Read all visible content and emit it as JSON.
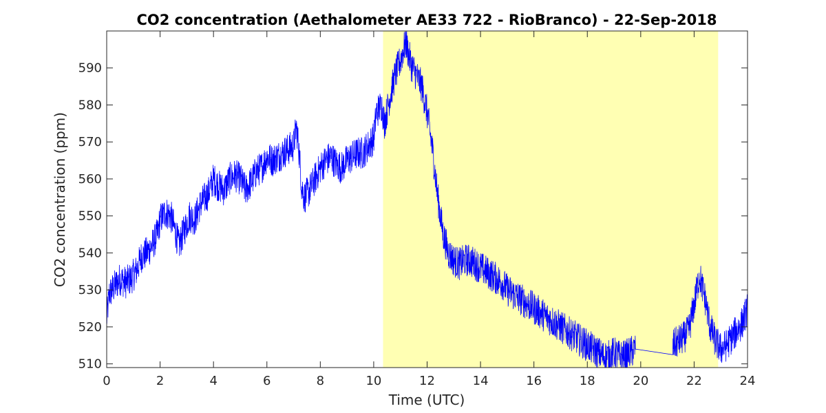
{
  "chart_data": {
    "type": "line",
    "title": "CO2 concentration (Aethalometer AE33 722 - RioBranco) - 22-Sep-2018",
    "xlabel": "Time (UTC)",
    "ylabel": "CO2 concentration (ppm)",
    "xlim": [
      0,
      24
    ],
    "ylim": [
      509,
      600
    ],
    "x_ticks": [
      0,
      2,
      4,
      6,
      8,
      10,
      12,
      14,
      16,
      18,
      20,
      22,
      24
    ],
    "y_ticks": [
      510,
      520,
      530,
      540,
      550,
      560,
      570,
      580,
      590
    ],
    "grid": false,
    "shaded_region": {
      "x_start": 10.35,
      "x_end": 22.9,
      "color": "#ffffb3"
    },
    "line_color": "#0000ff",
    "series": [
      {
        "x": [
          0,
          0.1,
          0.3,
          0.5,
          0.7,
          0.9,
          1.1,
          1.3,
          1.5,
          1.7,
          1.9,
          2.0,
          2.2,
          2.4,
          2.6,
          2.7,
          2.9,
          3.1,
          3.3,
          3.5,
          3.8,
          4.0,
          4.2,
          4.4,
          4.6,
          4.8,
          5.0,
          5.2,
          5.4,
          5.6,
          5.8,
          6.0,
          6.2,
          6.4,
          6.6,
          6.8,
          7.0,
          7.1,
          7.2,
          7.3,
          7.4,
          7.6,
          7.8,
          8.0,
          8.2,
          8.4,
          8.6,
          8.8,
          9.0,
          9.2,
          9.4,
          9.6,
          9.8,
          10.0,
          10.1,
          10.3,
          10.4,
          10.6,
          10.8,
          11.0,
          11.2,
          11.4,
          11.6,
          11.8,
          12.0,
          12.2,
          12.4,
          12.6,
          12.8,
          13.0,
          13.2,
          13.4,
          13.6,
          13.8,
          14.0,
          14.2,
          14.4,
          14.6,
          14.8,
          15.0,
          15.2,
          15.4,
          15.6,
          15.8,
          16.0,
          16.2,
          16.4,
          16.6,
          16.8,
          17.0,
          17.2,
          17.4,
          17.6,
          17.8,
          18.0,
          18.2,
          18.4,
          18.6,
          18.8,
          19.0,
          19.2,
          19.4,
          19.6,
          19.8,
          21.2,
          21.4,
          21.6,
          21.8,
          22.0,
          22.2,
          22.4,
          22.6,
          22.8,
          23.0,
          23.2,
          23.4,
          23.6,
          23.8,
          24.0
        ],
        "y": [
          522,
          529,
          531,
          533,
          532,
          533,
          535,
          539,
          540,
          542,
          545,
          549,
          551,
          550,
          545,
          542,
          546,
          550,
          549,
          553,
          556,
          560,
          558,
          557,
          560,
          561,
          560,
          557,
          559,
          562,
          563,
          566,
          565,
          566,
          567,
          568,
          569,
          574,
          568,
          558,
          555,
          557,
          560,
          563,
          565,
          566,
          564,
          563,
          565,
          566,
          567,
          567,
          569,
          571,
          578,
          580,
          575,
          582,
          588,
          592,
          597,
          591,
          588,
          585,
          578,
          568,
          555,
          545,
          540,
          538,
          537,
          538,
          538,
          537,
          536,
          535,
          534,
          533,
          532,
          530,
          529,
          528,
          527,
          526,
          525,
          524,
          523,
          522,
          521,
          520,
          519,
          518,
          517,
          516,
          515,
          514,
          513,
          512,
          512,
          513,
          512,
          512,
          513,
          514,
          515,
          516,
          517,
          519,
          526,
          534,
          528,
          520,
          516,
          514,
          515,
          517,
          519,
          521,
          525
        ]
      }
    ]
  }
}
